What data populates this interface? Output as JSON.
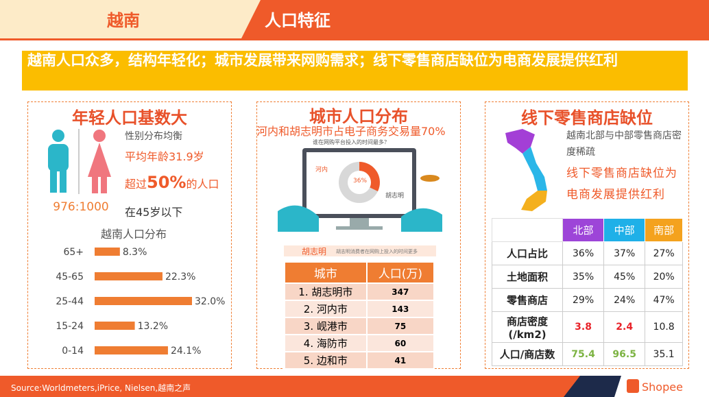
{
  "header": {
    "region": "越南",
    "topic": "人口特征"
  },
  "headline": "越南人口众多，结构年轻化；城市发展带来网购需求；线下零售商店缺位为电商发展提供红利",
  "left": {
    "title": "年轻人口基数大",
    "gender_note": "性别分布均衡",
    "avg_age": "平均年龄31.9岁",
    "young_prefix": "超过",
    "young_share": "50%",
    "young_suffix": "的人口",
    "young_line2": "在45岁以下",
    "ratio": "976:1000",
    "chart_data": {
      "type": "bar",
      "title": "越南人口分布",
      "orientation": "horizontal",
      "color": "#ef7d32",
      "categories": [
        "65+",
        "45-65",
        "25-44",
        "15-24",
        "0-14"
      ],
      "values": [
        8.3,
        22.3,
        32.0,
        13.2,
        24.1
      ],
      "value_labels": [
        "8.3%",
        "22.3%",
        "32.0%",
        "13.2%",
        "24.1%"
      ]
    }
  },
  "middle": {
    "title": "城市人口分布",
    "subtitle": "河内和胡志明市占电子商务交易量70%",
    "illustration": {
      "question": "谁在网购平台投入的时间最多？",
      "hanoi": "河内",
      "hcm": "胡志明",
      "share": "36%",
      "banner": "胡志明",
      "banner_note": "胡志明消费者在网购上投入的时间更多"
    },
    "table": {
      "columns": [
        "城市",
        "人口(万)"
      ],
      "rows": [
        [
          "1. 胡志明市",
          "347"
        ],
        [
          "2. 河内市",
          "143"
        ],
        [
          "3. 岘港市",
          "75"
        ],
        [
          "4. 海防市",
          "60"
        ],
        [
          "5. 边和市",
          "41"
        ]
      ]
    }
  },
  "right": {
    "title": "线下零售商店缺位",
    "note": "越南北部与中部零售商店密度稀疏",
    "highlight": "线下零售商店缺位为电商发展提供红利",
    "table": {
      "columns": [
        "北部",
        "中部",
        "南部"
      ],
      "rows": [
        [
          "人口占比",
          "36%",
          "37%",
          "27%"
        ],
        [
          "土地面积",
          "35%",
          "45%",
          "20%"
        ],
        [
          "零售商店",
          "29%",
          "24%",
          "47%"
        ],
        [
          "商店密度(/km2)",
          "3.8",
          "2.4",
          "10.8"
        ],
        [
          "人口/商店数",
          "75.4",
          "96.5",
          "35.1"
        ]
      ]
    }
  },
  "footer": {
    "source": "Source:Worldmeters,iPrice, Nielsen,越南之声",
    "brand": "Shopee"
  }
}
